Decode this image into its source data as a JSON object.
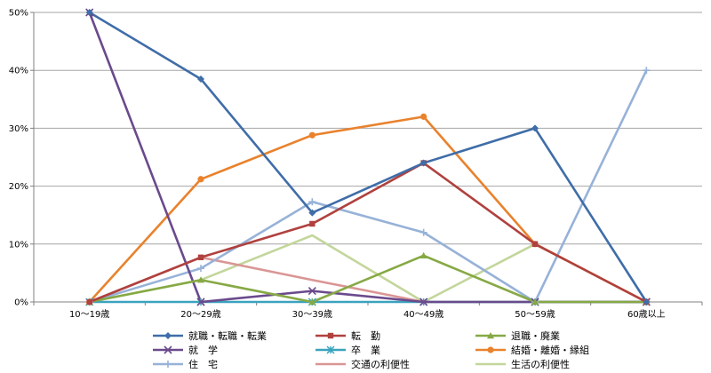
{
  "chart_data": {
    "type": "line",
    "title": "",
    "xlabel": "",
    "ylabel": "",
    "categories": [
      "10〜19歳",
      "20〜29歳",
      "30〜39歳",
      "40〜49歳",
      "50〜59歳",
      "60歳以上"
    ],
    "ylim": [
      0,
      50
    ],
    "yticks": [
      0,
      10,
      20,
      30,
      40,
      50
    ],
    "ytick_labels": [
      "0%",
      "10%",
      "20%",
      "30%",
      "40%",
      "50%"
    ],
    "grid": "horizontal",
    "legend_position": "bottom",
    "series": [
      {
        "name": "就職・転職・転業",
        "color": "#3F6DA8",
        "marker": "diamond",
        "values": [
          50,
          38.5,
          15.4,
          24,
          30,
          0
        ]
      },
      {
        "name": "転　勤",
        "color": "#B0413E",
        "marker": "square",
        "values": [
          0,
          7.7,
          13.5,
          24,
          10,
          0
        ]
      },
      {
        "name": "退職・廃業",
        "color": "#86A944",
        "marker": "triangle",
        "values": [
          0,
          3.8,
          0,
          8,
          0,
          0
        ]
      },
      {
        "name": "就　学",
        "color": "#6A4A8C",
        "marker": "x",
        "values": [
          50,
          0,
          1.9,
          0,
          0,
          0
        ]
      },
      {
        "name": "卒　業",
        "color": "#3BA3BE",
        "marker": "star",
        "values": [
          0,
          0,
          0,
          0,
          0,
          0
        ]
      },
      {
        "name": "結婚・離婚・縁組",
        "color": "#E9822D",
        "marker": "circle",
        "values": [
          0,
          21.2,
          28.8,
          32,
          10,
          0
        ]
      },
      {
        "name": "住　宅",
        "color": "#97B2D8",
        "marker": "plus",
        "values": [
          0,
          5.8,
          17.3,
          12,
          0,
          40
        ]
      },
      {
        "name": "交通の利便性",
        "color": "#D99694",
        "marker": "none",
        "values": [
          0,
          7.7,
          3.8,
          0,
          0,
          0
        ]
      },
      {
        "name": "生活の利便性",
        "color": "#C3D69B",
        "marker": "none",
        "values": [
          0,
          3.8,
          11.5,
          0,
          10,
          0
        ]
      }
    ]
  }
}
